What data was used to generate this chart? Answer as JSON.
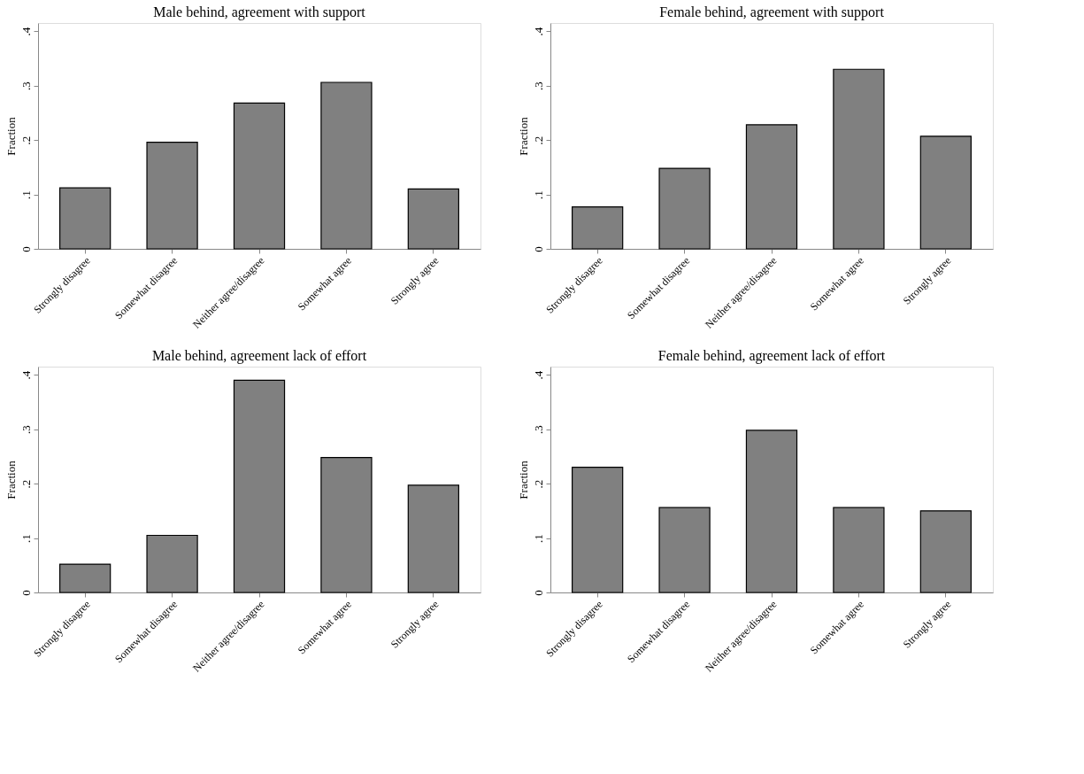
{
  "chart_data": [
    {
      "type": "bar",
      "title": "Male behind, agreement with support",
      "ylabel": "Fraction",
      "categories": [
        "Strongly disagree",
        "Somewhat disagree",
        "Neither agree/disagree",
        "Somewhat agree",
        "Strongly agree"
      ],
      "values": [
        0.112,
        0.196,
        0.268,
        0.306,
        0.11
      ],
      "color": "#808080",
      "ylim": [
        0,
        0.415
      ],
      "yticks": [
        0,
        {
          "value": 0.1,
          "label": ".1"
        },
        {
          "value": 0.2,
          "label": ".2"
        },
        {
          "value": 0.3,
          "label": ".3"
        },
        {
          "value": 0.4,
          "label": ".4"
        }
      ],
      "grid": false,
      "legend": false
    },
    {
      "type": "bar",
      "title": "Female behind, agreement with support",
      "ylabel": "Fraction",
      "categories": [
        "Strongly disagree",
        "Somewhat disagree",
        "Neither agree/disagree",
        "Somewhat agree",
        "Strongly agree"
      ],
      "values": [
        0.077,
        0.148,
        0.228,
        0.33,
        0.207
      ],
      "color": "#808080",
      "ylim": [
        0,
        0.415
      ],
      "yticks": [
        0,
        {
          "value": 0.1,
          "label": ".1"
        },
        {
          "value": 0.2,
          "label": ".2"
        },
        {
          "value": 0.3,
          "label": ".3"
        },
        {
          "value": 0.4,
          "label": ".4"
        }
      ],
      "grid": false,
      "legend": false
    },
    {
      "type": "bar",
      "title": "Male behind, agreement lack of effort",
      "ylabel": "Fraction",
      "categories": [
        "Strongly disagree",
        "Somewhat disagree",
        "Neither agree/disagree",
        "Somewhat agree",
        "Strongly agree"
      ],
      "values": [
        0.052,
        0.105,
        0.39,
        0.248,
        0.197
      ],
      "color": "#808080",
      "ylim": [
        0,
        0.415
      ],
      "yticks": [
        0,
        {
          "value": 0.1,
          "label": ".1"
        },
        {
          "value": 0.2,
          "label": ".2"
        },
        {
          "value": 0.3,
          "label": ".3"
        },
        {
          "value": 0.4,
          "label": ".4"
        }
      ],
      "grid": false,
      "legend": false
    },
    {
      "type": "bar",
      "title": "Female behind, agreement lack of effort",
      "ylabel": "Fraction",
      "categories": [
        "Strongly disagree",
        "Somewhat disagree",
        "Neither agree/disagree",
        "Somewhat agree",
        "Strongly agree"
      ],
      "values": [
        0.23,
        0.156,
        0.298,
        0.156,
        0.15
      ],
      "color": "#808080",
      "ylim": [
        0,
        0.415
      ],
      "yticks": [
        0,
        {
          "value": 0.1,
          "label": ".1"
        },
        {
          "value": 0.2,
          "label": ".2"
        },
        {
          "value": 0.3,
          "label": ".3"
        },
        {
          "value": 0.4,
          "label": ".4"
        }
      ],
      "grid": false,
      "legend": false
    }
  ]
}
